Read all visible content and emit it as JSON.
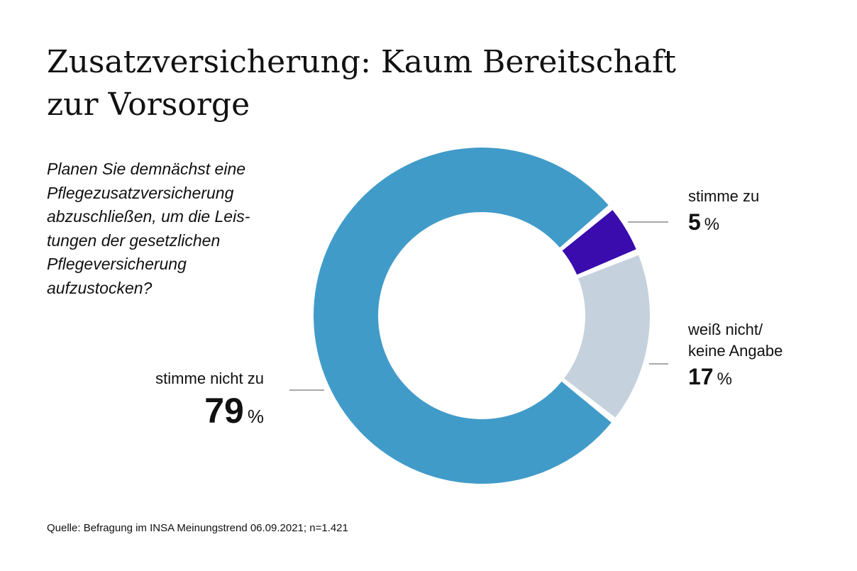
{
  "title_lines": [
    "Zusatzversicherung: Kaum Bereitschaft",
    "zur Vorsorge"
  ],
  "question_lines": [
    "Planen Sie demnächst eine",
    "Pflegezusatzversicherung",
    "abzuschließen, um die Leis-",
    "tungen der gesetzlichen",
    "Pflegeversicherung",
    "aufzustocken?"
  ],
  "source": "Quelle: Befragung im INSA Meinungstrend 06.09.2021; n=1.421",
  "chart_data": {
    "type": "pie",
    "style": "donut",
    "unit": "%",
    "slices": [
      {
        "label_lines": [
          "stimme zu"
        ],
        "value": 5,
        "value_text": "5",
        "color": "#3a0cad"
      },
      {
        "label_lines": [
          "weiß nicht/",
          "keine Angabe"
        ],
        "value": 17,
        "value_text": "17",
        "color": "#c6d1de"
      },
      {
        "label_lines": [
          "stimme nicht zu"
        ],
        "value": 79,
        "value_text": "79",
        "color": "#419bc9"
      }
    ]
  },
  "colors": {
    "leader_line": "#8c8c8c",
    "text": "#111111",
    "background": "#ffffff"
  }
}
